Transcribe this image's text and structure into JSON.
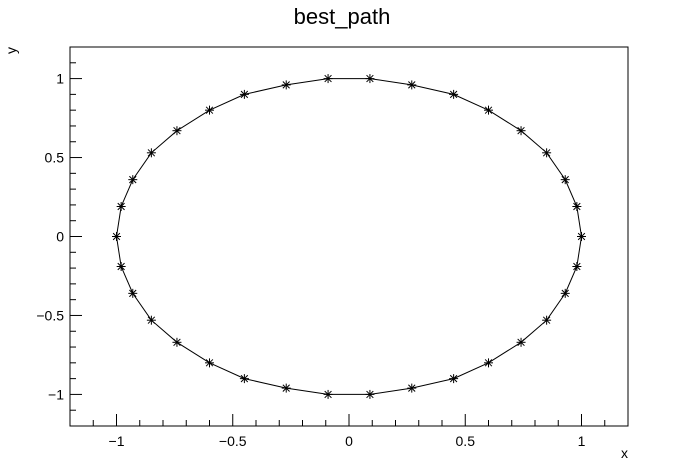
{
  "chart_data": {
    "type": "scatter",
    "title": "best_path",
    "xlabel": "x",
    "ylabel": "y",
    "xlim": [
      -1.2,
      1.2
    ],
    "ylim": [
      -1.2,
      1.2
    ],
    "grid": false,
    "marker": "asterisk",
    "connected": true,
    "closed_path": true,
    "line_color": "#000000",
    "marker_color": "#000000",
    "x_ticks": [
      {
        "value": -1,
        "label": "−1"
      },
      {
        "value": -0.5,
        "label": "−0.5"
      },
      {
        "value": 0,
        "label": "0"
      },
      {
        "value": 0.5,
        "label": "0.5"
      },
      {
        "value": 1,
        "label": "1"
      }
    ],
    "y_ticks": [
      {
        "value": -1,
        "label": "−1"
      },
      {
        "value": -0.5,
        "label": "−0.5"
      },
      {
        "value": 0,
        "label": "0"
      },
      {
        "value": 0.5,
        "label": "0.5"
      },
      {
        "value": 1,
        "label": "1"
      }
    ],
    "x_minor_step": 0.1,
    "y_minor_step": 0.1,
    "x": [
      1.0,
      0.98,
      0.93,
      0.85,
      0.74,
      0.6,
      0.45,
      0.27,
      0.09,
      -0.09,
      -0.27,
      -0.45,
      -0.6,
      -0.74,
      -0.85,
      -0.93,
      -0.98,
      -1.0,
      -0.98,
      -0.93,
      -0.85,
      -0.74,
      -0.6,
      -0.45,
      -0.27,
      -0.09,
      0.09,
      0.27,
      0.45,
      0.6,
      0.74,
      0.85,
      0.93,
      0.98
    ],
    "y": [
      0.0,
      0.19,
      0.36,
      0.53,
      0.67,
      0.8,
      0.9,
      0.96,
      1.0,
      1.0,
      0.96,
      0.9,
      0.8,
      0.67,
      0.53,
      0.36,
      0.19,
      0.0,
      -0.19,
      -0.36,
      -0.53,
      -0.67,
      -0.8,
      -0.9,
      -0.96,
      -1.0,
      -1.0,
      -0.96,
      -0.9,
      -0.8,
      -0.67,
      -0.53,
      -0.36,
      -0.19
    ]
  }
}
